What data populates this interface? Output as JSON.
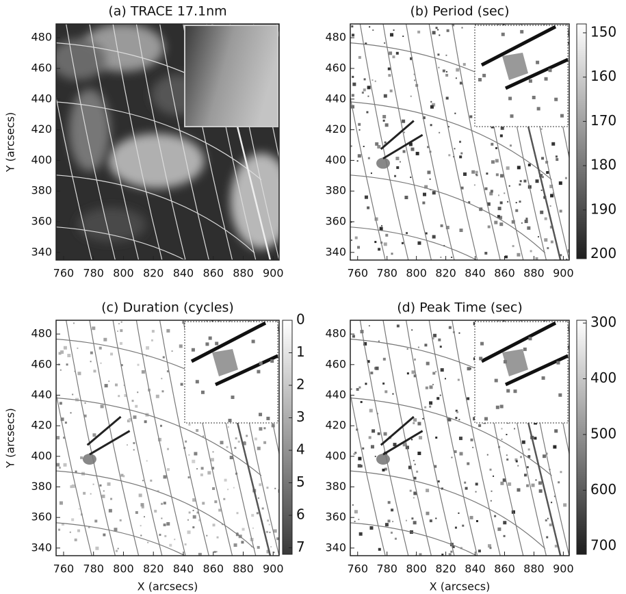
{
  "chart_data": [
    {
      "type": "image",
      "title": "(a) TRACE 17.1nm",
      "ylabel": "Y (arcsecs)",
      "xlim": [
        755,
        904
      ],
      "ylim": [
        335,
        489
      ],
      "xticks": [
        760,
        780,
        800,
        820,
        840,
        860,
        880,
        900
      ],
      "yticks": [
        340,
        360,
        380,
        400,
        420,
        440,
        460,
        480
      ]
    },
    {
      "type": "image",
      "title": "(b) Period (sec)",
      "xlim": [
        755,
        904
      ],
      "ylim": [
        335,
        489
      ],
      "xticks": [
        760,
        780,
        800,
        820,
        840,
        860,
        880,
        900
      ],
      "yticks": [
        340,
        360,
        380,
        400,
        420,
        440,
        460,
        480
      ],
      "colorbar": {
        "lim": [
          148,
          201
        ],
        "ticks": [
          150,
          160,
          170,
          180,
          190,
          200
        ],
        "colors": [
          "#ffffff",
          "#1e1e1e"
        ]
      }
    },
    {
      "type": "image",
      "title": "(c) Duration (cycles)",
      "xlabel": "X (arcsecs)",
      "ylabel": "Y (arcsecs)",
      "xlim": [
        755,
        904
      ],
      "ylim": [
        335,
        489
      ],
      "xticks": [
        760,
        780,
        800,
        820,
        840,
        860,
        880,
        900
      ],
      "yticks": [
        340,
        360,
        380,
        400,
        420,
        440,
        460,
        480
      ],
      "colorbar": {
        "lim": [
          0,
          7.2
        ],
        "ticks": [
          0,
          1,
          2,
          3,
          4,
          5,
          6,
          7
        ],
        "colors": [
          "#ffffff",
          "#3a3a3a"
        ]
      }
    },
    {
      "type": "image",
      "title": "(d) Peak Time (sec)",
      "xlabel": "X (arcsecs)",
      "xlim": [
        755,
        904
      ],
      "ylim": [
        335,
        489
      ],
      "xticks": [
        760,
        780,
        800,
        820,
        840,
        860,
        880,
        900
      ],
      "yticks": [
        340,
        360,
        380,
        400,
        420,
        440,
        460,
        480
      ],
      "colorbar": {
        "lim": [
          295,
          715
        ],
        "ticks": [
          300,
          400,
          500,
          600,
          700
        ],
        "colors": [
          "#ffffff",
          "#1e1e1e"
        ]
      }
    }
  ]
}
